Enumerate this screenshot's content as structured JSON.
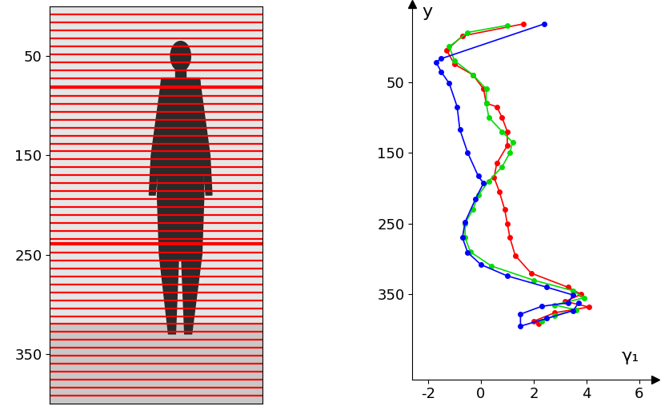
{
  "chart_data": [
    {
      "type": "image_lines",
      "xlim": [
        0,
        210
      ],
      "xticks": [],
      "ylim": [
        400,
        0
      ],
      "yticks": [
        50,
        150,
        250,
        350
      ],
      "tick_labels": "y",
      "color": "#ff0000",
      "lines": [
        8,
        16,
        24,
        32,
        40,
        48,
        56,
        64,
        72,
        80,
        82,
        90,
        98,
        106,
        114,
        122,
        130,
        138,
        146,
        154,
        162,
        170,
        178,
        186,
        194,
        202,
        210,
        218,
        226,
        234,
        238,
        240,
        248,
        256,
        264,
        272,
        280,
        288,
        296,
        304,
        312,
        320,
        328,
        336,
        344,
        352,
        360,
        368,
        376,
        384,
        392
      ]
    },
    {
      "type": "line",
      "xlabel": "γ₁",
      "ylabel": "y",
      "xlim": [
        -2.6,
        6.6
      ],
      "xticks": [
        -2,
        0,
        2,
        4,
        6
      ],
      "ylim": [
        470,
        -60
      ],
      "yticks": [
        50,
        150,
        250,
        350
      ],
      "marker": "o",
      "line_style": "solid",
      "series": [
        {
          "color": "#ff0000",
          "x": [
            1.6,
            -0.7,
            -1.3,
            -1.0,
            -0.3,
            0.1,
            0.2,
            0.6,
            0.8,
            1.0,
            1.0,
            0.6,
            0.5,
            0.7,
            0.9,
            1.0,
            1.1,
            1.3,
            1.9,
            3.3,
            3.8,
            3.2,
            4.1,
            2.8,
            2.0,
            2.2
          ],
          "y": [
            -32,
            -15,
            5,
            25,
            40,
            60,
            80,
            85,
            100,
            120,
            140,
            165,
            185,
            205,
            230,
            250,
            270,
            295,
            320,
            340,
            350,
            360,
            368,
            376,
            388,
            392
          ]
        },
        {
          "color": "#00dd00",
          "x": [
            1.0,
            -0.5,
            -1.2,
            -1.0,
            -0.3,
            0.2,
            0.2,
            0.3,
            0.8,
            1.2,
            1.1,
            0.8,
            0.3,
            -0.1,
            -0.3,
            -0.6,
            -0.6,
            -0.4,
            0.4,
            2.0,
            3.5,
            3.9,
            2.8,
            3.6,
            2.8,
            2.3
          ],
          "y": [
            -30,
            -20,
            0,
            20,
            40,
            60,
            80,
            100,
            120,
            135,
            150,
            170,
            190,
            210,
            230,
            250,
            270,
            290,
            310,
            330,
            345,
            355,
            365,
            372,
            380,
            388
          ]
        },
        {
          "color": "#0000ff",
          "x": [
            2.4,
            -1.5,
            -1.7,
            -1.5,
            -1.2,
            -0.9,
            -0.8,
            -0.5,
            -0.1,
            0.1,
            -0.2,
            -0.6,
            -0.7,
            -0.5,
            0.0,
            1.0,
            2.5,
            3.5,
            3.3,
            2.3,
            1.5,
            1.5,
            2.5,
            3.5,
            3.7
          ],
          "y": [
            -32,
            17,
            22,
            36,
            52,
            85,
            117,
            150,
            183,
            193,
            215,
            248,
            270,
            291,
            308,
            324,
            340,
            351,
            362,
            367,
            378,
            395,
            384,
            373,
            362
          ]
        }
      ]
    }
  ]
}
